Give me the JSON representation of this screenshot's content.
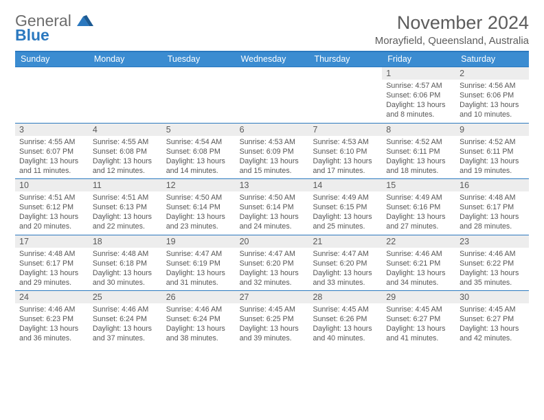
{
  "branding": {
    "word1": "General",
    "word2": "Blue",
    "word1_color": "#6c6c6c",
    "word2_color": "#2a78bf",
    "icon_color": "#2a78bf"
  },
  "title": "November 2024",
  "location": "Morayfield, Queensland, Australia",
  "colors": {
    "header_bg": "#3b8cd1",
    "header_text": "#ffffff",
    "rule": "#2a78bf",
    "daynum_bg": "#ededed",
    "body_text": "#555555"
  },
  "typography": {
    "title_fontsize": 27,
    "location_fontsize": 15,
    "dow_fontsize": 12.5,
    "daynum_fontsize": 12.5,
    "body_fontsize": 10.7
  },
  "days_of_week": [
    "Sunday",
    "Monday",
    "Tuesday",
    "Wednesday",
    "Thursday",
    "Friday",
    "Saturday"
  ],
  "labels": {
    "sunrise": "Sunrise:",
    "sunset": "Sunset:",
    "daylight": "Daylight:"
  },
  "weeks": [
    [
      {
        "empty": true
      },
      {
        "empty": true
      },
      {
        "empty": true
      },
      {
        "empty": true
      },
      {
        "empty": true
      },
      {
        "n": "1",
        "sr": "4:57 AM",
        "ss": "6:06 PM",
        "dl": "13 hours and 8 minutes."
      },
      {
        "n": "2",
        "sr": "4:56 AM",
        "ss": "6:06 PM",
        "dl": "13 hours and 10 minutes."
      }
    ],
    [
      {
        "n": "3",
        "sr": "4:55 AM",
        "ss": "6:07 PM",
        "dl": "13 hours and 11 minutes."
      },
      {
        "n": "4",
        "sr": "4:55 AM",
        "ss": "6:08 PM",
        "dl": "13 hours and 12 minutes."
      },
      {
        "n": "5",
        "sr": "4:54 AM",
        "ss": "6:08 PM",
        "dl": "13 hours and 14 minutes."
      },
      {
        "n": "6",
        "sr": "4:53 AM",
        "ss": "6:09 PM",
        "dl": "13 hours and 15 minutes."
      },
      {
        "n": "7",
        "sr": "4:53 AM",
        "ss": "6:10 PM",
        "dl": "13 hours and 17 minutes."
      },
      {
        "n": "8",
        "sr": "4:52 AM",
        "ss": "6:11 PM",
        "dl": "13 hours and 18 minutes."
      },
      {
        "n": "9",
        "sr": "4:52 AM",
        "ss": "6:11 PM",
        "dl": "13 hours and 19 minutes."
      }
    ],
    [
      {
        "n": "10",
        "sr": "4:51 AM",
        "ss": "6:12 PM",
        "dl": "13 hours and 20 minutes."
      },
      {
        "n": "11",
        "sr": "4:51 AM",
        "ss": "6:13 PM",
        "dl": "13 hours and 22 minutes."
      },
      {
        "n": "12",
        "sr": "4:50 AM",
        "ss": "6:14 PM",
        "dl": "13 hours and 23 minutes."
      },
      {
        "n": "13",
        "sr": "4:50 AM",
        "ss": "6:14 PM",
        "dl": "13 hours and 24 minutes."
      },
      {
        "n": "14",
        "sr": "4:49 AM",
        "ss": "6:15 PM",
        "dl": "13 hours and 25 minutes."
      },
      {
        "n": "15",
        "sr": "4:49 AM",
        "ss": "6:16 PM",
        "dl": "13 hours and 27 minutes."
      },
      {
        "n": "16",
        "sr": "4:48 AM",
        "ss": "6:17 PM",
        "dl": "13 hours and 28 minutes."
      }
    ],
    [
      {
        "n": "17",
        "sr": "4:48 AM",
        "ss": "6:17 PM",
        "dl": "13 hours and 29 minutes."
      },
      {
        "n": "18",
        "sr": "4:48 AM",
        "ss": "6:18 PM",
        "dl": "13 hours and 30 minutes."
      },
      {
        "n": "19",
        "sr": "4:47 AM",
        "ss": "6:19 PM",
        "dl": "13 hours and 31 minutes."
      },
      {
        "n": "20",
        "sr": "4:47 AM",
        "ss": "6:20 PM",
        "dl": "13 hours and 32 minutes."
      },
      {
        "n": "21",
        "sr": "4:47 AM",
        "ss": "6:20 PM",
        "dl": "13 hours and 33 minutes."
      },
      {
        "n": "22",
        "sr": "4:46 AM",
        "ss": "6:21 PM",
        "dl": "13 hours and 34 minutes."
      },
      {
        "n": "23",
        "sr": "4:46 AM",
        "ss": "6:22 PM",
        "dl": "13 hours and 35 minutes."
      }
    ],
    [
      {
        "n": "24",
        "sr": "4:46 AM",
        "ss": "6:23 PM",
        "dl": "13 hours and 36 minutes."
      },
      {
        "n": "25",
        "sr": "4:46 AM",
        "ss": "6:24 PM",
        "dl": "13 hours and 37 minutes."
      },
      {
        "n": "26",
        "sr": "4:46 AM",
        "ss": "6:24 PM",
        "dl": "13 hours and 38 minutes."
      },
      {
        "n": "27",
        "sr": "4:45 AM",
        "ss": "6:25 PM",
        "dl": "13 hours and 39 minutes."
      },
      {
        "n": "28",
        "sr": "4:45 AM",
        "ss": "6:26 PM",
        "dl": "13 hours and 40 minutes."
      },
      {
        "n": "29",
        "sr": "4:45 AM",
        "ss": "6:27 PM",
        "dl": "13 hours and 41 minutes."
      },
      {
        "n": "30",
        "sr": "4:45 AM",
        "ss": "6:27 PM",
        "dl": "13 hours and 42 minutes."
      }
    ]
  ]
}
